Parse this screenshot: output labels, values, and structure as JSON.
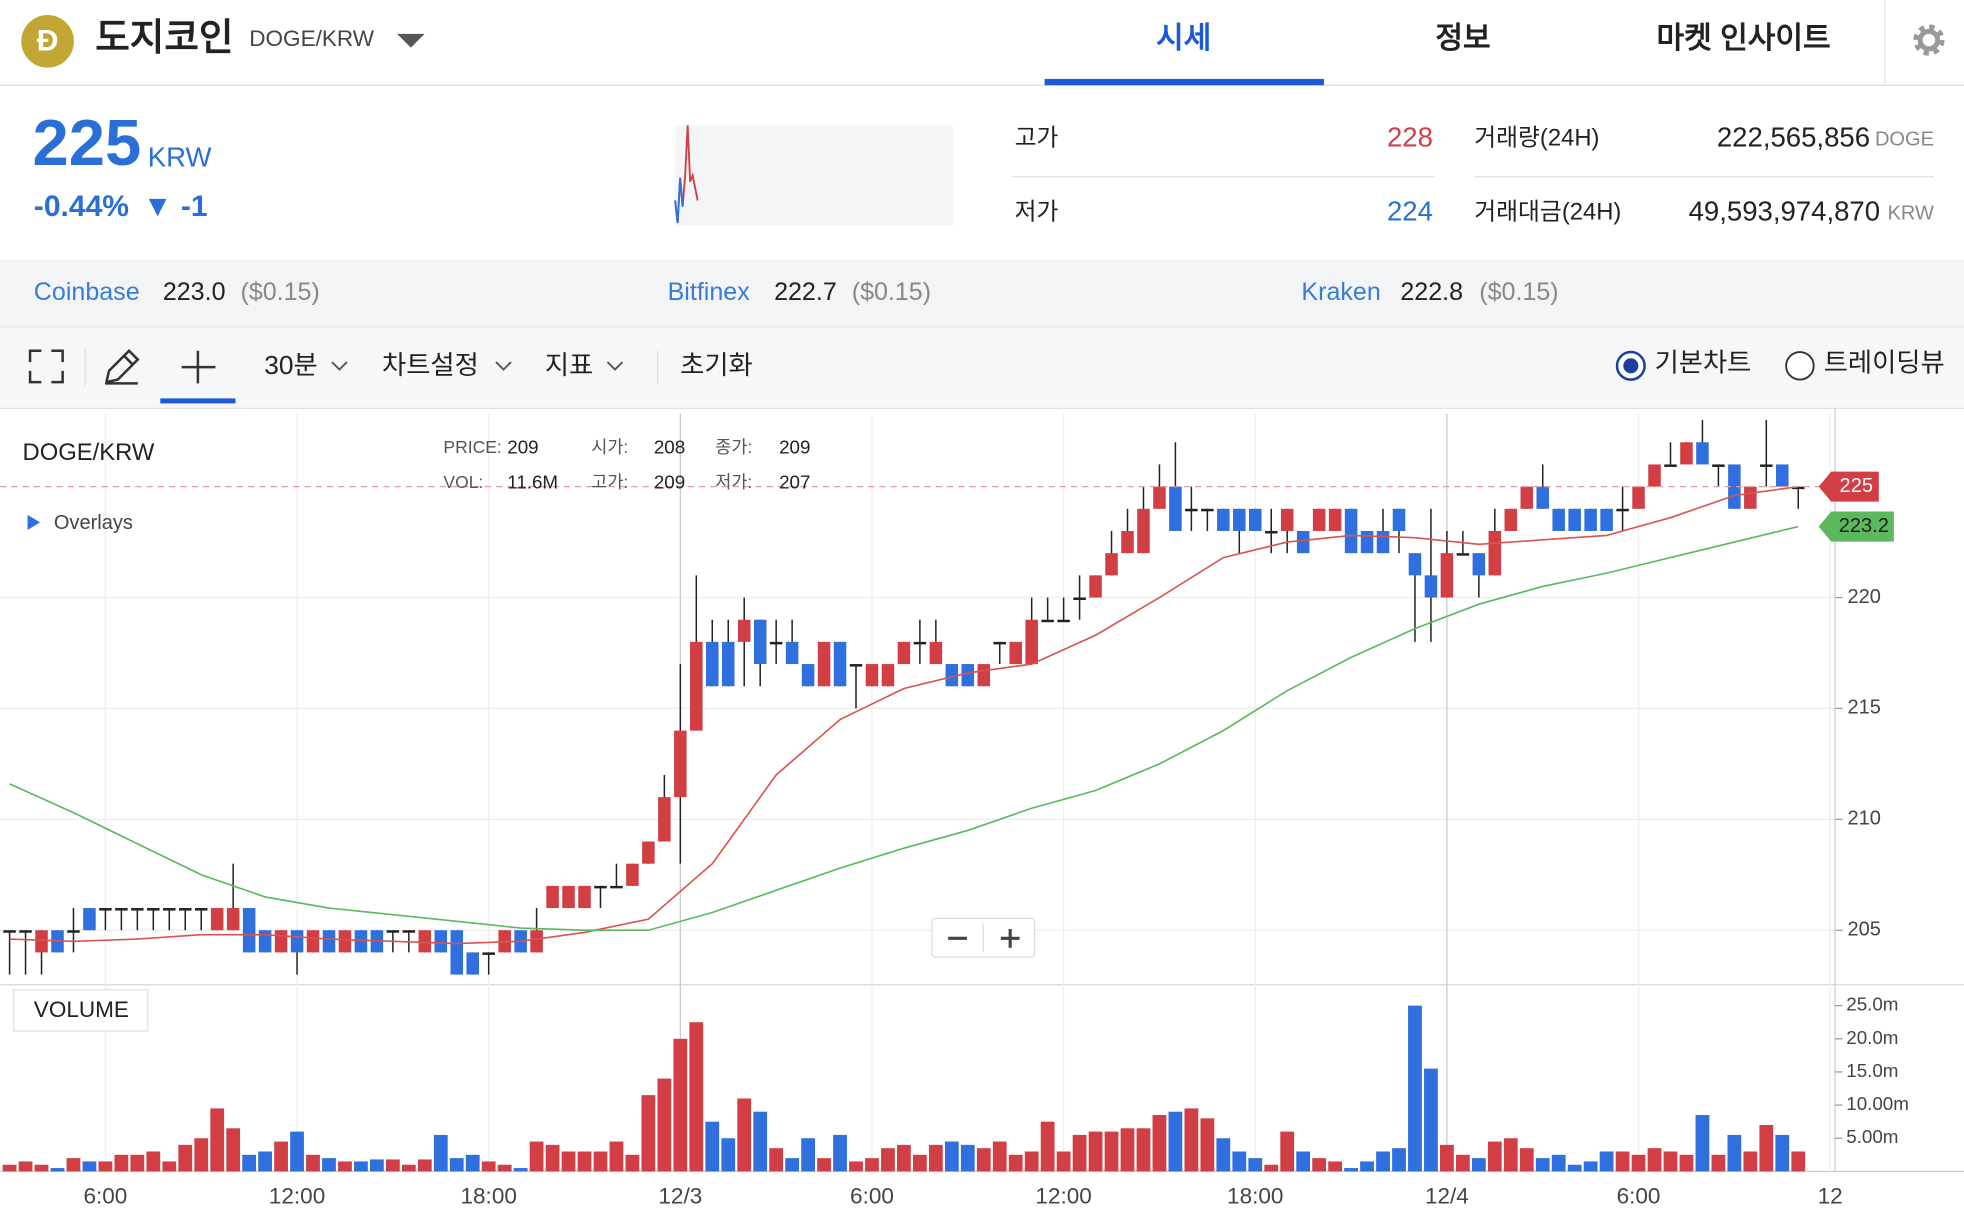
{
  "header": {
    "logo": "Ð",
    "coin": "도지코인",
    "pair": "DOGE/KRW"
  },
  "tabs": [
    "시세",
    "정보",
    "마켓 인사이트"
  ],
  "price": {
    "value": 225,
    "unit": "KRW",
    "change_rate": "-0.44%",
    "change": "▼ -1"
  },
  "stats": [
    {
      "label": "고가",
      "value": 228
    },
    {
      "label": "저가",
      "value": 224
    },
    {
      "label": "거래량(24H)",
      "value": "222,565,856",
      "unit": "DOGE"
    },
    {
      "label": "거래대금(24H)",
      "value": "49,593,974,870",
      "unit": "KRW"
    }
  ],
  "exchanges": [
    {
      "name": "Coinbase",
      "price": "223.0",
      "usd": "($0.15)"
    },
    {
      "name": "Bitfinex",
      "price": "222.7",
      "usd": "($0.15)"
    },
    {
      "name": "Kraken",
      "price": "222.8",
      "usd": "($0.15)"
    }
  ],
  "toolbar": {
    "interval": "30분",
    "settings": "차트설정",
    "indicators": "지표",
    "reset": "초기화",
    "modes": [
      "기본차트",
      "트레이딩뷰"
    ]
  },
  "chart_data": {
    "type": "candlestick",
    "title": "DOGE/KRW",
    "overlays_label": "Overlays",
    "volume_label": "VOLUME",
    "crosshair": [
      {
        "label": "PRICE:",
        "value": 209
      },
      {
        "label": "시가:",
        "value": 208
      },
      {
        "label": "종가:",
        "value": 209
      },
      {
        "label": "VOL:",
        "value": "11.6M"
      },
      {
        "label": "고가:",
        "value": 209
      },
      {
        "label": "저가:",
        "value": 207
      }
    ],
    "up_color": "#d13f45",
    "down_color": "#2f6fde",
    "open": [
      205,
      205,
      204,
      205,
      205,
      206,
      206,
      206,
      206,
      206,
      206,
      206,
      206,
      205,
      205,
      206,
      205,
      204,
      205,
      204,
      205,
      204,
      205,
      205,
      205,
      205,
      204,
      205,
      205,
      204,
      204,
      204,
      205,
      204,
      206,
      206,
      206,
      207,
      207,
      207,
      208,
      209,
      211,
      214,
      218,
      218,
      218,
      219,
      218,
      218,
      217,
      216,
      218,
      217,
      216,
      216,
      217,
      218,
      217,
      217,
      217,
      216,
      218,
      217,
      217,
      219,
      219,
      220,
      220,
      221,
      222,
      222,
      224,
      225,
      224,
      224,
      224,
      224,
      224,
      223,
      223,
      223,
      223,
      223,
      224,
      223,
      223,
      224,
      222,
      221,
      220,
      222,
      222,
      221,
      223,
      224,
      225,
      224,
      224,
      224,
      224,
      224,
      224,
      225,
      226,
      226,
      227,
      226,
      226,
      224,
      226,
      226,
      225
    ],
    "high": [
      205,
      205,
      205,
      205,
      206,
      206,
      206,
      206,
      206,
      206,
      206,
      206,
      206,
      206,
      208,
      206,
      205,
      205,
      205,
      205,
      205,
      205,
      205,
      205,
      205,
      205,
      205,
      205,
      205,
      204,
      204,
      205,
      205,
      206,
      207,
      207,
      207,
      207,
      208,
      208,
      209,
      212,
      217,
      221,
      219,
      219,
      220,
      219,
      219,
      219,
      217,
      218,
      218,
      217,
      217,
      217,
      218,
      219,
      219,
      217,
      217,
      217,
      218,
      218,
      220,
      220,
      220,
      221,
      221,
      223,
      224,
      225,
      226,
      227,
      225,
      224,
      224,
      224,
      224,
      224,
      224,
      223,
      224,
      224,
      224,
      223,
      224,
      224,
      222,
      224,
      223,
      223,
      222,
      224,
      224,
      225,
      226,
      224,
      224,
      224,
      224,
      225,
      225,
      226,
      227,
      227,
      228,
      226,
      226,
      225,
      228,
      226,
      225
    ],
    "low": [
      203,
      203,
      203,
      204,
      204,
      205,
      205,
      205,
      205,
      205,
      205,
      205,
      205,
      205,
      205,
      204,
      204,
      204,
      203,
      204,
      204,
      204,
      204,
      204,
      204,
      204,
      204,
      204,
      203,
      203,
      203,
      204,
      204,
      204,
      206,
      206,
      206,
      206,
      207,
      207,
      208,
      209,
      208,
      214,
      216,
      216,
      216,
      216,
      217,
      217,
      216,
      216,
      216,
      215,
      216,
      216,
      217,
      217,
      217,
      216,
      216,
      216,
      217,
      217,
      217,
      219,
      219,
      219,
      220,
      221,
      222,
      222,
      224,
      223,
      223,
      223,
      223,
      222,
      223,
      222,
      222,
      222,
      223,
      223,
      222,
      222,
      222,
      222,
      218,
      218,
      220,
      222,
      220,
      221,
      223,
      224,
      224,
      223,
      223,
      223,
      223,
      223,
      224,
      225,
      226,
      226,
      226,
      225,
      224,
      224,
      225,
      225,
      224
    ],
    "close": [
      205,
      205,
      205,
      204,
      205,
      205,
      206,
      206,
      206,
      206,
      206,
      206,
      206,
      206,
      206,
      204,
      204,
      205,
      204,
      205,
      204,
      205,
      204,
      204,
      205,
      205,
      205,
      204,
      203,
      203,
      204,
      205,
      204,
      205,
      207,
      207,
      207,
      207,
      207,
      208,
      209,
      211,
      214,
      218,
      216,
      216,
      219,
      217,
      218,
      217,
      216,
      218,
      216,
      217,
      217,
      217,
      218,
      218,
      218,
      216,
      216,
      217,
      218,
      218,
      219,
      219,
      219,
      220,
      221,
      222,
      223,
      224,
      225,
      223,
      224,
      224,
      223,
      223,
      223,
      223,
      224,
      222,
      224,
      224,
      222,
      222,
      222,
      223,
      221,
      220,
      222,
      222,
      221,
      223,
      224,
      225,
      224,
      223,
      223,
      223,
      223,
      224,
      225,
      226,
      226,
      227,
      226,
      226,
      224,
      225,
      226,
      225,
      225
    ],
    "volume": [
      1,
      1.5,
      1,
      0.5,
      2,
      1.5,
      1.5,
      2.5,
      2.5,
      3,
      1.5,
      4,
      5,
      9.5,
      6.5,
      2.5,
      3,
      4.5,
      6,
      2.5,
      2,
      1.5,
      1.5,
      1.8,
      1.8,
      1,
      1.8,
      5.5,
      2,
      2.5,
      1.5,
      1,
      0.5,
      4.5,
      4,
      3,
      3,
      3,
      4.5,
      2.5,
      11.5,
      14,
      20,
      22.5,
      7.5,
      5,
      11,
      9,
      3.5,
      2,
      5,
      2,
      5.5,
      1.5,
      2,
      3.5,
      4,
      2.5,
      4,
      4.5,
      4,
      3.5,
      4.5,
      2.5,
      3,
      7.5,
      3,
      5.5,
      6,
      6,
      6.5,
      6.5,
      8.5,
      9,
      9.5,
      8,
      5,
      3,
      2,
      1,
      6,
      3,
      2,
      1.5,
      0.5,
      1.5,
      3,
      3.5,
      25,
      15.5,
      4,
      2.5,
      2,
      4.5,
      5,
      3.5,
      2,
      2.5,
      1,
      1.5,
      3,
      3,
      2.5,
      3.5,
      3,
      2.5,
      8.5,
      2.5,
      5.5,
      3,
      7,
      5.5,
      3
    ],
    "series": [
      {
        "color": "#d9534f",
        "x": [
          0,
          4,
          8,
          12,
          16,
          20,
          24,
          28,
          32,
          36,
          40,
          44,
          48,
          52,
          56,
          60,
          64,
          68,
          72,
          76,
          80,
          84,
          88,
          92,
          96,
          100,
          104,
          108,
          112
        ],
        "values": [
          204.6,
          204.5,
          204.6,
          204.8,
          204.8,
          204.6,
          204.5,
          204.4,
          204.5,
          204.9,
          205.5,
          208,
          212,
          214.5,
          215.9,
          216.6,
          217,
          218.3,
          220,
          221.8,
          222.5,
          222.8,
          222.7,
          222.4,
          222.6,
          222.8,
          223.6,
          224.6,
          225
        ]
      },
      {
        "color": "#5cb85c",
        "x": [
          0,
          4,
          8,
          12,
          16,
          20,
          24,
          28,
          32,
          36,
          40,
          44,
          48,
          52,
          56,
          60,
          64,
          68,
          72,
          76,
          80,
          84,
          88,
          92,
          96,
          100,
          104,
          108,
          112
        ],
        "values": [
          211.6,
          210.3,
          208.9,
          207.5,
          206.5,
          206,
          205.7,
          205.4,
          205.1,
          205,
          205,
          205.8,
          206.8,
          207.8,
          208.7,
          209.5,
          210.5,
          211.3,
          212.5,
          214,
          215.8,
          217.3,
          218.6,
          219.7,
          220.5,
          221.1,
          221.8,
          222.5,
          223.2
        ]
      }
    ],
    "xlim": [
      -0.6,
      114.3
    ],
    "xticks": [
      {
        "value": 6,
        "label": "6:00"
      },
      {
        "value": 18,
        "label": "12:00"
      },
      {
        "value": 30,
        "label": "18:00"
      },
      {
        "value": 42,
        "label": "12/3"
      },
      {
        "value": 54,
        "label": "6:00"
      },
      {
        "value": 66,
        "label": "12:00"
      },
      {
        "value": 78,
        "label": "18:00"
      },
      {
        "value": 90,
        "label": "12/4"
      },
      {
        "value": 102,
        "label": "6:00"
      },
      {
        "value": 114,
        "label": "12"
      }
    ],
    "ylim": [
      202.6,
      228.3
    ],
    "yticks": [
      205,
      210,
      215,
      220
    ],
    "vol_ylim": [
      0,
      27.4
    ],
    "vol_yticks": [
      {
        "value": 5,
        "label": "5.00m"
      },
      {
        "value": 10,
        "label": "10.00m"
      },
      {
        "value": 15,
        "label": "15.0m"
      },
      {
        "value": 20,
        "label": "20.0m"
      },
      {
        "value": 25,
        "label": "25.0m"
      }
    ],
    "grid": true
  }
}
